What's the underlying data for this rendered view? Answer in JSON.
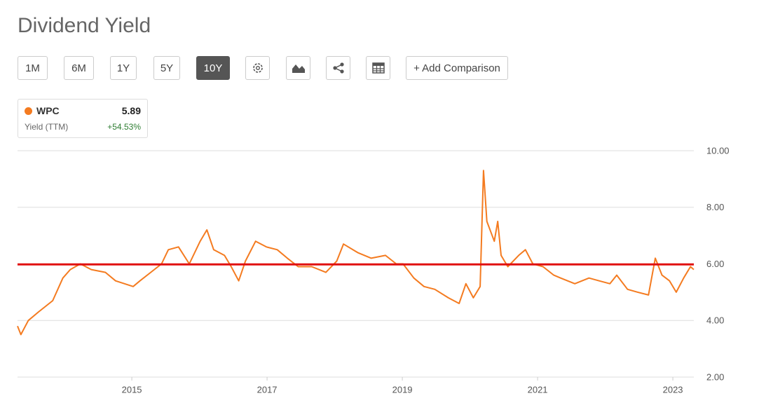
{
  "toolbar": {
    "ranges": [
      "1M",
      "6M",
      "1Y",
      "5Y",
      "10Y"
    ],
    "active_range": 4,
    "compare": "+ Add Comparison"
  },
  "chart_data": {
    "type": "line",
    "title": "Dividend Yield",
    "series": [
      {
        "name": "WPC",
        "color": "#f47b20",
        "x": [
          2013.31,
          2013.36,
          2013.47,
          2013.62,
          2013.83,
          2013.98,
          2014.09,
          2014.24,
          2014.4,
          2014.61,
          2014.76,
          2015.02,
          2015.12,
          2015.28,
          2015.44,
          2015.54,
          2015.69,
          2015.85,
          2016.01,
          2016.11,
          2016.21,
          2016.37,
          2016.47,
          2016.58,
          2016.68,
          2016.83,
          2016.99,
          2017.15,
          2017.3,
          2017.46,
          2017.66,
          2017.87,
          2018.03,
          2018.13,
          2018.34,
          2018.54,
          2018.75,
          2018.91,
          2019.01,
          2019.17,
          2019.32,
          2019.48,
          2019.68,
          2019.84,
          2019.94,
          2020.05,
          2020.15,
          2020.2,
          2020.25,
          2020.36,
          2020.41,
          2020.46,
          2020.56,
          2020.72,
          2020.82,
          2020.93,
          2021.08,
          2021.24,
          2021.34,
          2021.55,
          2021.76,
          2021.91,
          2022.07,
          2022.17,
          2022.33,
          2022.48,
          2022.64,
          2022.74,
          2022.84,
          2022.95,
          2023.05,
          2023.16,
          2023.26,
          2023.31
        ],
        "values": [
          3.8,
          3.5,
          4.0,
          4.3,
          4.7,
          5.5,
          5.8,
          6.0,
          5.8,
          5.7,
          5.4,
          5.2,
          5.4,
          5.7,
          6.0,
          6.5,
          6.6,
          6.0,
          6.8,
          7.2,
          6.5,
          6.3,
          5.9,
          5.4,
          6.1,
          6.8,
          6.6,
          6.5,
          6.2,
          5.9,
          5.9,
          5.7,
          6.1,
          6.7,
          6.4,
          6.2,
          6.3,
          6.0,
          6.0,
          5.5,
          5.2,
          5.1,
          4.8,
          4.6,
          5.3,
          4.8,
          5.2,
          9.3,
          7.5,
          6.8,
          7.5,
          6.3,
          5.9,
          6.3,
          6.5,
          6.0,
          5.9,
          5.6,
          5.5,
          5.3,
          5.5,
          5.4,
          5.3,
          5.6,
          5.1,
          5.0,
          4.9,
          6.2,
          5.6,
          5.4,
          5.0,
          5.5,
          5.9,
          5.8
        ]
      }
    ],
    "legend": {
      "value": 5.89,
      "subtitle": "Yield (TTM)",
      "change": "+54.53%"
    },
    "reference_line": {
      "value": 5.98,
      "color": "#e01010"
    },
    "xlim": [
      2013.31,
      2023.31
    ],
    "xticks": [
      2015,
      2017,
      2019,
      2021,
      2023
    ],
    "ylim": [
      2,
      10
    ],
    "yticks": [
      {
        "value": 2,
        "label": "2.00"
      },
      {
        "value": 4,
        "label": "4.00"
      },
      {
        "value": 6,
        "label": "6.00"
      },
      {
        "value": 8,
        "label": "8.00"
      },
      {
        "value": 10,
        "label": "10.00"
      }
    ],
    "grid": true
  }
}
